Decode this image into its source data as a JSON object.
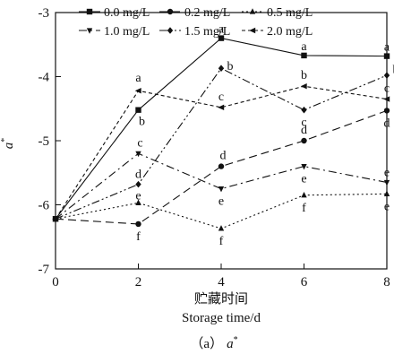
{
  "chart_data": {
    "type": "line",
    "x": [
      0,
      2,
      4,
      6,
      8
    ],
    "xticks": [
      "0",
      "2",
      "4",
      "6",
      "8"
    ],
    "yticks": [
      "-7",
      "-6",
      "-5",
      "-4",
      "-3"
    ],
    "xlim": [
      0,
      8
    ],
    "ylim": [
      -7,
      -3
    ],
    "ylabel_main": "a",
    "ylabel_sup": "*",
    "xlabel_cn": "贮藏时间",
    "xlabel_en": "Storage time/d",
    "caption_prefix": "（a）",
    "caption_main": "a",
    "caption_sup": "*",
    "series": [
      {
        "name": "0.0 mg/L",
        "values": [
          -6.22,
          -4.52,
          -3.4,
          -3.67,
          -3.68
        ],
        "dash": "",
        "marker": "square",
        "letters": [
          "",
          "b",
          "a",
          "a",
          "a"
        ]
      },
      {
        "name": "0.2 mg/L",
        "values": [
          -6.22,
          -6.3,
          -5.4,
          -5.0,
          -4.53
        ],
        "dash": "9,5",
        "marker": "circle",
        "letters": [
          "",
          "f",
          "d",
          "d",
          "d"
        ]
      },
      {
        "name": "0.5 mg/L",
        "values": [
          -6.22,
          -5.97,
          -6.37,
          -5.85,
          -5.83
        ],
        "dash": "2,3",
        "marker": "triangle-up",
        "letters": [
          "",
          "e",
          "f",
          "f",
          "e"
        ]
      },
      {
        "name": "1.0 mg/L",
        "values": [
          -6.22,
          -5.2,
          -5.75,
          -5.4,
          -5.65
        ],
        "dash": "9,4,2,4",
        "marker": "triangle-down",
        "letters": [
          "",
          "c",
          "e",
          "e",
          "e"
        ]
      },
      {
        "name": "1.5 mg/L",
        "values": [
          -6.22,
          -5.68,
          -3.87,
          -4.52,
          -3.98
        ],
        "dash": "9,3,2,3,2,3",
        "marker": "diamond",
        "letters": [
          "",
          "d",
          "b",
          "c",
          "b"
        ]
      },
      {
        "name": "2.0 mg/L",
        "values": [
          -6.22,
          -4.22,
          -4.48,
          -4.15,
          -4.35
        ],
        "dash": "4,3",
        "marker": "arrow-left",
        "letters": [
          "",
          "a",
          "c",
          "b",
          "c"
        ]
      }
    ]
  }
}
